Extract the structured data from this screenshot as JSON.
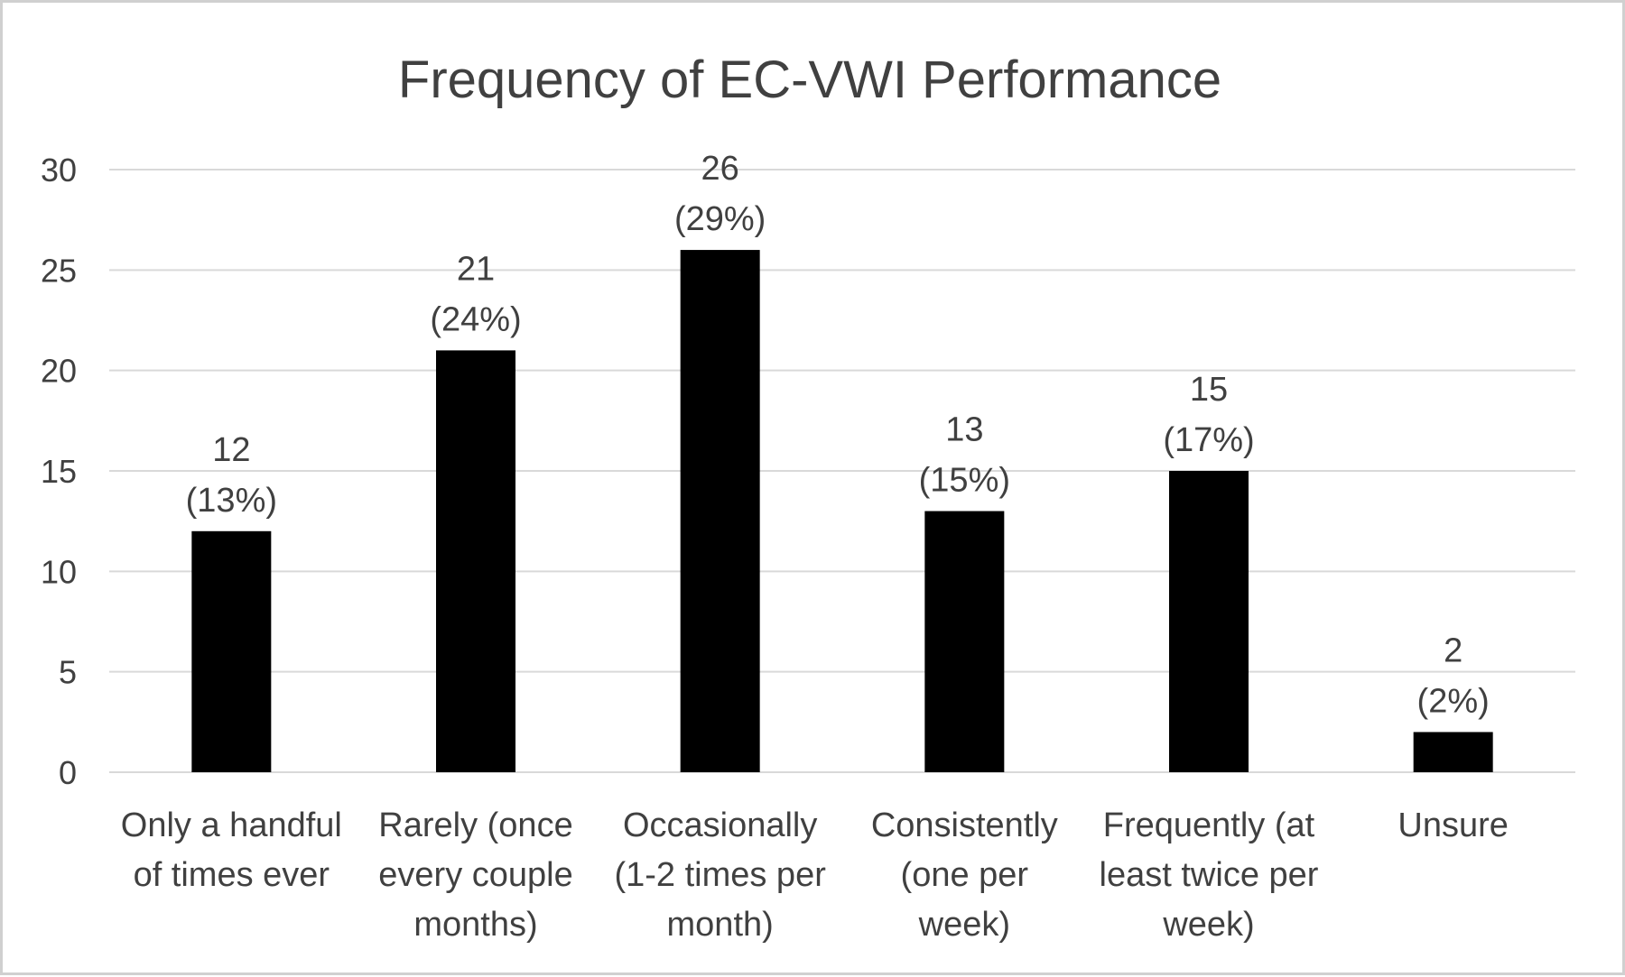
{
  "chart_data": {
    "type": "bar",
    "title": "Frequency of EC-VWI Performance",
    "xlabel": "",
    "ylabel": "",
    "ylim": [
      0,
      30
    ],
    "yticks": [
      "0",
      "5",
      "10",
      "15",
      "20",
      "25",
      "30"
    ],
    "categories": [
      [
        "Only a handful",
        "of times ever"
      ],
      [
        "Rarely (once",
        "every couple",
        "months)"
      ],
      [
        "Occasionally",
        "(1-2 times per",
        "month)"
      ],
      [
        "Consistently",
        "(one per",
        "week)"
      ],
      [
        "Frequently (at",
        "least twice per",
        "week)"
      ],
      [
        "Unsure"
      ]
    ],
    "values": [
      12,
      21,
      26,
      13,
      15,
      2
    ],
    "data_labels": [
      [
        "12",
        "(13%)"
      ],
      [
        "21",
        "(24%)"
      ],
      [
        "26",
        "(29%)"
      ],
      [
        "13",
        "(15%)"
      ],
      [
        "15",
        "(17%)"
      ],
      [
        "2",
        "(2%)"
      ]
    ],
    "grid": true,
    "legend": "none",
    "bar_color": "#000000",
    "grid_color": "#d9d9d9",
    "text_color": "#404040"
  }
}
